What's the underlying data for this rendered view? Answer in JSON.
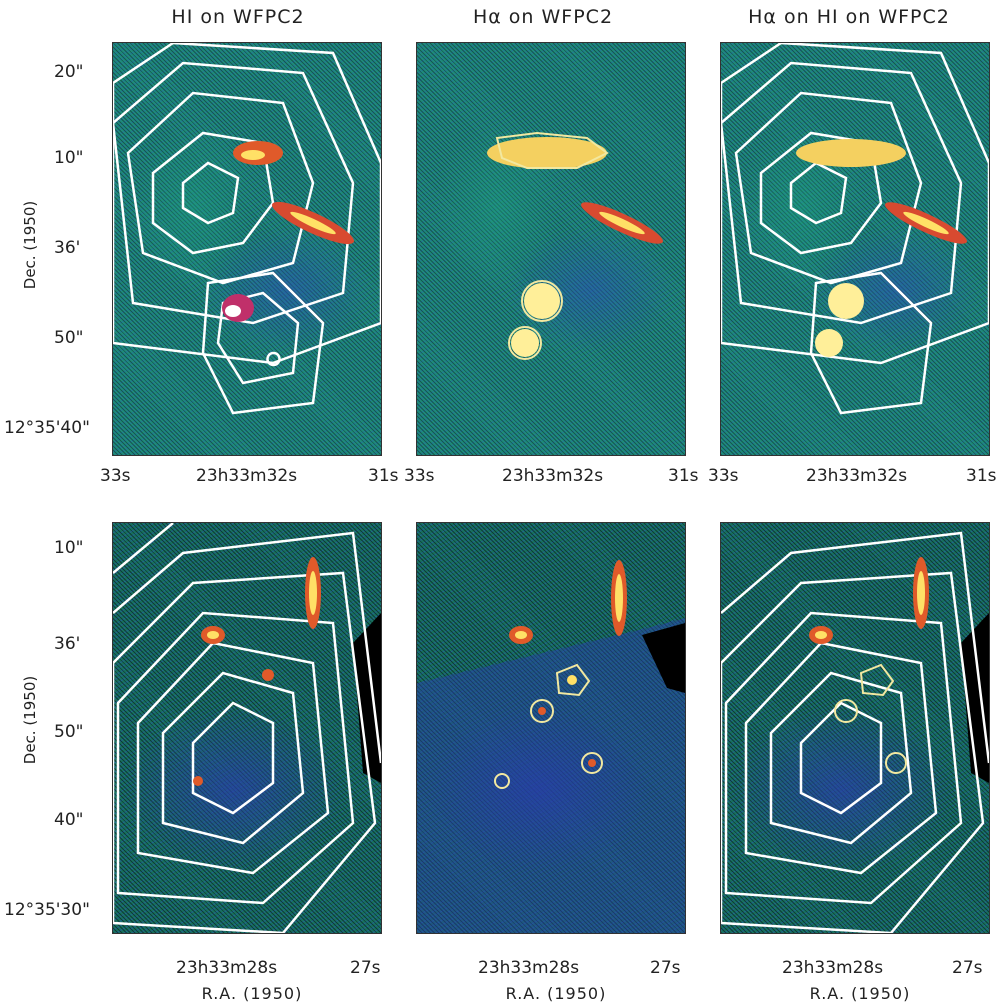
{
  "titles": [
    "HI on WFPC2",
    "Hα on WFPC2",
    "Hα on HI on WFPC2"
  ],
  "top_row": {
    "dec_label": "Dec. (1950)",
    "dec_ticks": [
      "20\"",
      "10\"",
      "36'",
      "50\"",
      "12°35'40\""
    ],
    "ra_ticks_left": [
      "33s",
      "23h33m32s",
      "31s"
    ],
    "ra_ticks_mid": [
      "33s",
      "23h33m32s",
      "31s"
    ],
    "ra_ticks_right": [
      "33s",
      "23h33m32s",
      "31s"
    ]
  },
  "bottom_row": {
    "dec_label": "Dec. (1950)",
    "dec_ticks": [
      "10\"",
      "36'",
      "50\"",
      "40\"",
      "12°35'30\""
    ],
    "ra_ticks": [
      "23h33m28s",
      "27s"
    ],
    "ra_label": "R.A. (1950)"
  },
  "colors": {
    "background_field": "#1f8a7a",
    "contour": "#ffffff",
    "halpha_contour": "#f2e8a0",
    "bright_emission": "#ffe066"
  }
}
